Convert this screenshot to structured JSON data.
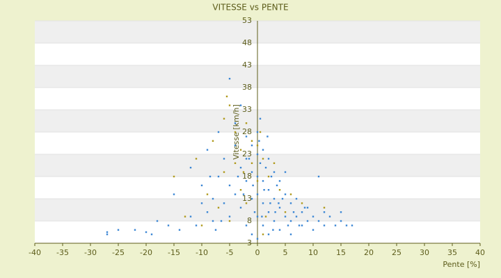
{
  "chart_data": {
    "type": "scatter",
    "title": "VITESSE vs PENTE",
    "x_label": "Pente [%]",
    "y_label": "Vitesse [km/h]",
    "xlim": [
      -40,
      40
    ],
    "xticks": [
      -40,
      -35,
      -30,
      -25,
      -20,
      -15,
      -10,
      -5,
      0,
      5,
      10,
      15,
      20,
      25,
      30,
      35,
      40
    ],
    "ylim": [
      3,
      53
    ],
    "yticks": [
      3,
      8,
      13,
      18,
      23,
      28,
      33,
      38,
      43,
      48,
      53
    ],
    "grid": true,
    "series": [
      {
        "color": "#3a86d4",
        "x": [
          -27,
          -27,
          -25,
          -22,
          -20,
          -19,
          -18,
          -16,
          -15,
          -14,
          -12,
          -11,
          -10,
          -9,
          -9,
          -8,
          -8,
          -7,
          -7,
          -6,
          -6,
          -5,
          -5,
          -5,
          -4,
          -4,
          -4,
          -3,
          -3,
          -3,
          -2,
          -2,
          -2,
          -2,
          -1,
          -1,
          -1,
          -1,
          0,
          0,
          0,
          0,
          0,
          0,
          0.5,
          0.5,
          1,
          1,
          1,
          1,
          1.5,
          2,
          2,
          2,
          2,
          2.5,
          3,
          3,
          3,
          3.5,
          4,
          4,
          4,
          5,
          5,
          5,
          6,
          6,
          6,
          7,
          7,
          8,
          8,
          9,
          9,
          10,
          10,
          11,
          11,
          12,
          12,
          13,
          14,
          15,
          15,
          16,
          17,
          -1.5,
          0.3,
          1.2,
          2.3,
          3.2,
          -0.5,
          -0.8,
          1.8,
          4.5,
          5.5,
          6.5,
          -2.5,
          -3.5,
          0.8,
          2.8,
          3.8,
          7.5,
          8.5,
          -6.5,
          -10,
          -12,
          -8.5,
          -7.5
        ],
        "values": [
          5,
          5.5,
          6,
          6,
          5.5,
          5,
          8,
          7,
          14,
          6,
          20,
          7,
          16,
          10,
          24,
          13,
          8,
          18,
          28,
          12,
          22,
          40,
          16,
          9,
          25,
          30,
          14,
          20,
          11,
          34,
          22,
          17,
          7,
          27,
          25,
          19,
          13,
          5,
          28,
          23,
          18,
          14,
          9,
          4,
          31,
          21,
          24,
          17,
          12,
          7,
          20,
          22,
          15,
          10,
          5,
          18,
          19,
          13,
          8,
          16,
          17,
          11,
          6,
          14,
          9,
          19,
          12,
          8,
          5,
          13,
          9,
          10,
          7,
          11,
          8,
          9,
          6,
          18,
          8,
          10,
          7,
          9,
          7,
          8,
          10,
          7,
          7,
          22,
          26,
          15,
          12,
          10,
          10,
          16,
          27,
          13,
          7,
          10,
          14,
          18,
          9,
          6,
          12,
          7,
          11,
          8,
          12,
          9,
          18,
          6
        ]
      },
      {
        "color": "#b09a1c",
        "x": [
          -15,
          -13,
          -11,
          -10,
          -9,
          -8,
          -7,
          -6,
          -6,
          -5,
          -5,
          -4,
          -4,
          -3,
          -3,
          -2,
          -2,
          -1,
          -1,
          0,
          0,
          1,
          1,
          2,
          3,
          4,
          5,
          6,
          8,
          12,
          -5.5,
          -2.5,
          0.5,
          1.5
        ],
        "values": [
          18,
          9,
          22,
          7,
          14,
          26,
          11,
          31,
          19,
          34,
          8,
          21,
          28,
          15,
          24,
          30,
          12,
          21,
          26,
          25,
          17,
          22,
          5,
          18,
          21,
          15,
          10,
          14,
          12,
          11,
          36,
          19,
          28,
          9
        ]
      }
    ]
  }
}
